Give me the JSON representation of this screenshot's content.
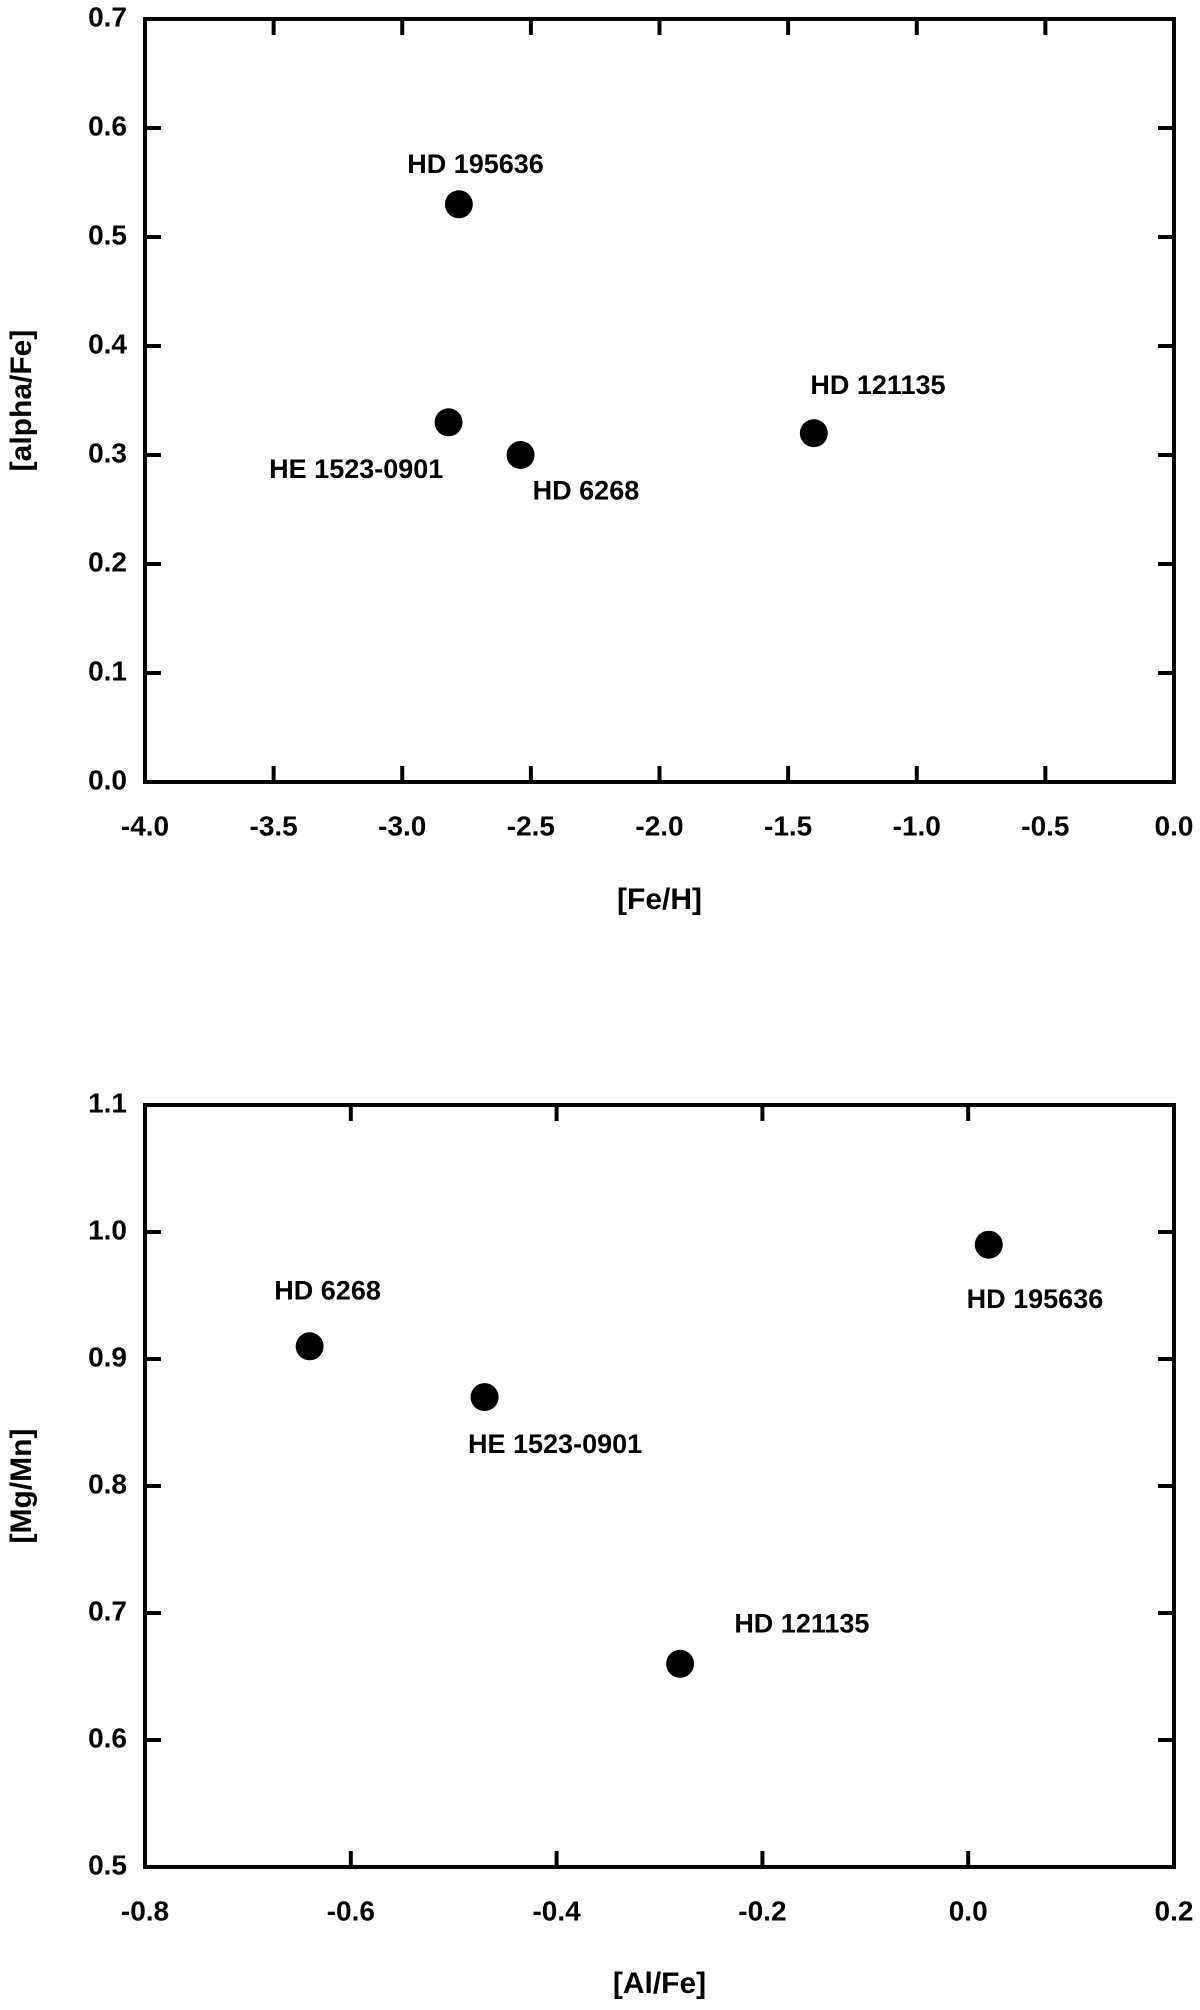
{
  "chart_data": [
    {
      "type": "scatter",
      "xlabel": "[Fe/H]",
      "ylabel": "[alpha/Fe]",
      "xlim": [
        -4,
        0
      ],
      "ylim": [
        0,
        0.7
      ],
      "xticks": [
        {
          "value": -4,
          "label": "-4.0"
        },
        -3.5,
        {
          "value": -3,
          "label": "-3.0"
        },
        -2.5,
        {
          "value": -2,
          "label": "-2.0"
        },
        -1.5,
        {
          "value": -1,
          "label": "-1.0"
        },
        -0.5,
        {
          "value": 0,
          "label": "0.0"
        }
      ],
      "yticks": [
        {
          "value": 0,
          "label": "0.0"
        },
        0.1,
        0.2,
        0.3,
        0.4,
        0.5,
        0.6,
        0.7
      ],
      "series": [
        {
          "color": "#000000",
          "x": [
            -2.78,
            -2.82,
            -2.54,
            -1.4
          ],
          "values": [
            0.53,
            0.33,
            0.3,
            0.32
          ],
          "point_labels": [
            "HD 195636",
            "HE 1523-0901",
            "HD 6268",
            "HD 121135"
          ]
        }
      ]
    },
    {
      "type": "scatter",
      "xlabel": "[Al/Fe]",
      "ylabel": "[Mg/Mn]",
      "xlim": [
        -0.8,
        0.2
      ],
      "ylim": [
        0.5,
        1.1
      ],
      "xticks": [
        -0.8,
        -0.6,
        -0.4,
        -0.2,
        {
          "value": 0,
          "label": "0.0"
        },
        0.2
      ],
      "yticks": [
        0.5,
        0.6,
        0.7,
        0.8,
        0.9,
        {
          "value": 1,
          "label": "1.0"
        },
        1.1
      ],
      "series": [
        {
          "color": "#000000",
          "x": [
            -0.64,
            -0.47,
            -0.28,
            0.02
          ],
          "values": [
            0.91,
            0.87,
            0.66,
            0.99
          ],
          "point_labels": [
            "HD 6268",
            "HE 1523-0901",
            "HD 121135",
            "HD 195636"
          ]
        }
      ]
    }
  ]
}
